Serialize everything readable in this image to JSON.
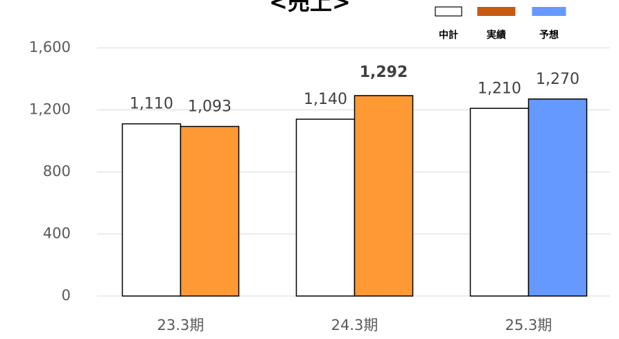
{
  "chart_data": {
    "type": "bar",
    "title": "<売上>",
    "categories": [
      "23.3期",
      "24.3期",
      "25.3期"
    ],
    "series": [
      {
        "name": "中計",
        "color": "#ffffff",
        "stroke": "#000000",
        "values": [
          1110,
          1140,
          1210
        ],
        "value_labels": [
          "1,110",
          "1,140",
          "1,210"
        ]
      },
      {
        "name": "実績",
        "color": "#ff9933",
        "legend_color": "#c55a11",
        "stroke": "#000000",
        "values": [
          1093,
          1292,
          null
        ],
        "value_labels": [
          "1,093",
          "1,292",
          null
        ],
        "bold_value_labels": [
          false,
          true,
          null
        ]
      },
      {
        "name": "予想",
        "color": "#6699ff",
        "legend_color": "#6699ff",
        "stroke": "#000000",
        "values": [
          null,
          null,
          1270
        ],
        "value_labels": [
          null,
          null,
          "1,270"
        ]
      }
    ],
    "ylim": [
      0,
      1600
    ],
    "yticks": [
      0,
      400,
      800,
      {
        "value": 1200,
        "label": "1,200"
      },
      {
        "value": 1600,
        "label": "1,600"
      }
    ],
    "grid": true,
    "legend": "top-right"
  }
}
